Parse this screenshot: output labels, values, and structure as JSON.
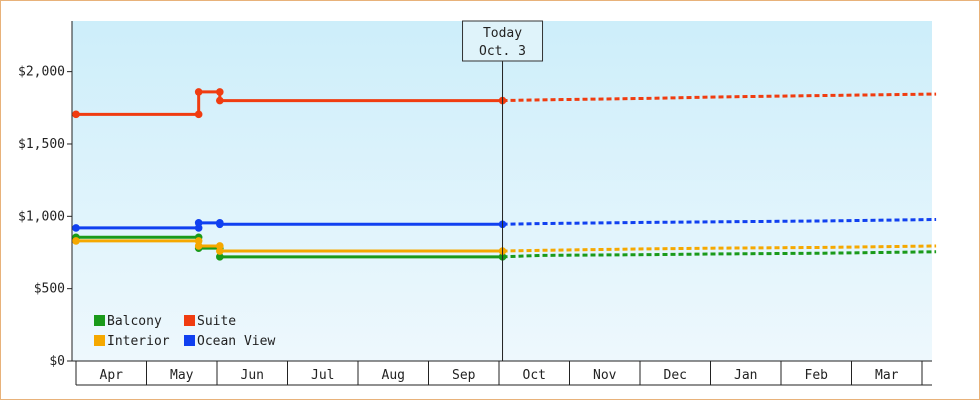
{
  "chart_data": {
    "type": "line",
    "x_axis": {
      "months": [
        "Apr",
        "May",
        "Jun",
        "Jul",
        "Aug",
        "Sep",
        "Oct",
        "Nov",
        "Dec",
        "Jan",
        "Feb",
        "Mar"
      ]
    },
    "y_axis": {
      "ticks": [
        {
          "value": 0,
          "label": "$0"
        },
        {
          "value": 500,
          "label": "$500"
        },
        {
          "value": 1000,
          "label": "$1,000"
        },
        {
          "value": 1500,
          "label": "$1,500"
        },
        {
          "value": 2000,
          "label": "$2,000"
        }
      ],
      "ylim": [
        0,
        2350
      ]
    },
    "today": {
      "line1": "Today",
      "line2": "Oct. 3",
      "x_month": 6.05
    },
    "series": [
      {
        "name": "Balcony",
        "color": "#1a9a1a",
        "history": [
          [
            0,
            855
          ],
          [
            1.74,
            855
          ],
          [
            1.74,
            780
          ],
          [
            2.04,
            780
          ],
          [
            2.04,
            720
          ],
          [
            6.05,
            720
          ]
        ],
        "markers": [
          [
            0,
            855
          ],
          [
            1.74,
            855
          ],
          [
            1.74,
            780
          ],
          [
            2.04,
            780
          ],
          [
            2.04,
            720
          ],
          [
            6.05,
            720
          ]
        ],
        "forecast": [
          [
            6.05,
            720
          ],
          [
            6.6,
            730
          ],
          [
            8.1,
            735
          ],
          [
            9.1,
            740
          ],
          [
            10.6,
            745
          ],
          [
            12.2,
            755
          ]
        ]
      },
      {
        "name": "Suite",
        "color": "#f03c10",
        "history": [
          [
            0,
            1705
          ],
          [
            1.74,
            1705
          ],
          [
            1.74,
            1860
          ],
          [
            2.04,
            1860
          ],
          [
            2.04,
            1800
          ],
          [
            6.05,
            1800
          ]
        ],
        "markers": [
          [
            0,
            1705
          ],
          [
            1.74,
            1705
          ],
          [
            1.74,
            1860
          ],
          [
            2.04,
            1860
          ],
          [
            2.04,
            1800
          ],
          [
            6.05,
            1800
          ]
        ],
        "forecast": [
          [
            6.05,
            1800
          ],
          [
            6.6,
            1805
          ],
          [
            8.1,
            1815
          ],
          [
            9.1,
            1825
          ],
          [
            10.6,
            1835
          ],
          [
            12.2,
            1845
          ]
        ]
      },
      {
        "name": "Interior",
        "color": "#f5a800",
        "history": [
          [
            0,
            830
          ],
          [
            1.74,
            830
          ],
          [
            1.74,
            795
          ],
          [
            2.04,
            795
          ],
          [
            2.04,
            760
          ],
          [
            6.05,
            760
          ]
        ],
        "markers": [
          [
            0,
            830
          ],
          [
            1.74,
            830
          ],
          [
            1.74,
            795
          ],
          [
            2.04,
            795
          ],
          [
            2.04,
            760
          ],
          [
            6.05,
            760
          ]
        ],
        "forecast": [
          [
            6.05,
            760
          ],
          [
            6.6,
            765
          ],
          [
            8.1,
            775
          ],
          [
            9.1,
            780
          ],
          [
            10.6,
            785
          ],
          [
            12.2,
            795
          ]
        ]
      },
      {
        "name": "Ocean View",
        "color": "#1040f0",
        "history": [
          [
            0,
            920
          ],
          [
            1.74,
            920
          ],
          [
            1.74,
            955
          ],
          [
            2.04,
            955
          ],
          [
            2.04,
            945
          ],
          [
            6.05,
            945
          ]
        ],
        "markers": [
          [
            0,
            920
          ],
          [
            1.74,
            920
          ],
          [
            1.74,
            955
          ],
          [
            2.04,
            955
          ],
          [
            2.04,
            945
          ],
          [
            6.05,
            945
          ]
        ],
        "forecast": [
          [
            6.05,
            945
          ],
          [
            6.6,
            950
          ],
          [
            8.1,
            958
          ],
          [
            9.1,
            962
          ],
          [
            10.6,
            968
          ],
          [
            12.2,
            978
          ]
        ]
      }
    ],
    "legend": {
      "placement": "bottom-left",
      "order": [
        "Balcony",
        "Suite",
        "Interior",
        "Ocean View"
      ]
    }
  }
}
